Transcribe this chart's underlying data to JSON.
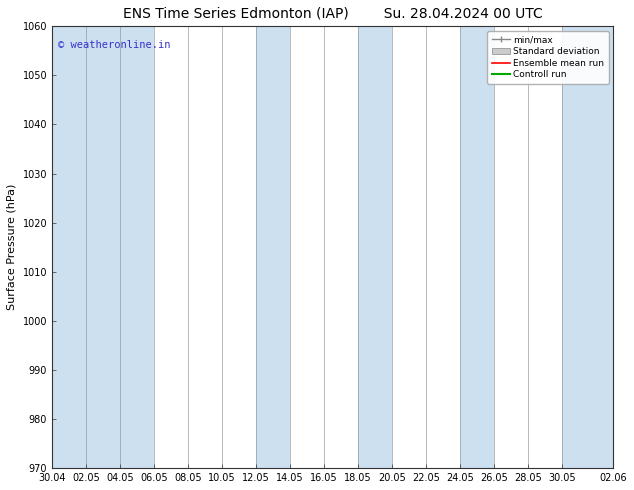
{
  "title_left": "ENS Time Series Edmonton (IAP)",
  "title_right": "Su. 28.04.2024 00 UTC",
  "ylabel": "Surface Pressure (hPa)",
  "ylim": [
    970,
    1060
  ],
  "yticks": [
    970,
    980,
    990,
    1000,
    1010,
    1020,
    1030,
    1040,
    1050,
    1060
  ],
  "xtick_labels": [
    "30.04",
    "02.05",
    "04.05",
    "06.05",
    "08.05",
    "10.05",
    "12.05",
    "14.05",
    "16.05",
    "18.05",
    "20.05",
    "22.05",
    "24.05",
    "26.05",
    "28.05",
    "30.05",
    "02.06"
  ],
  "watermark": "© weatheronline.in",
  "watermark_color": "#3333cc",
  "legend_entries": [
    "min/max",
    "Standard deviation",
    "Ensemble mean run",
    "Controll run"
  ],
  "bg_color": "#ffffff",
  "band_color": "#cde0f0",
  "title_fontsize": 10,
  "label_fontsize": 8,
  "tick_fontsize": 7
}
